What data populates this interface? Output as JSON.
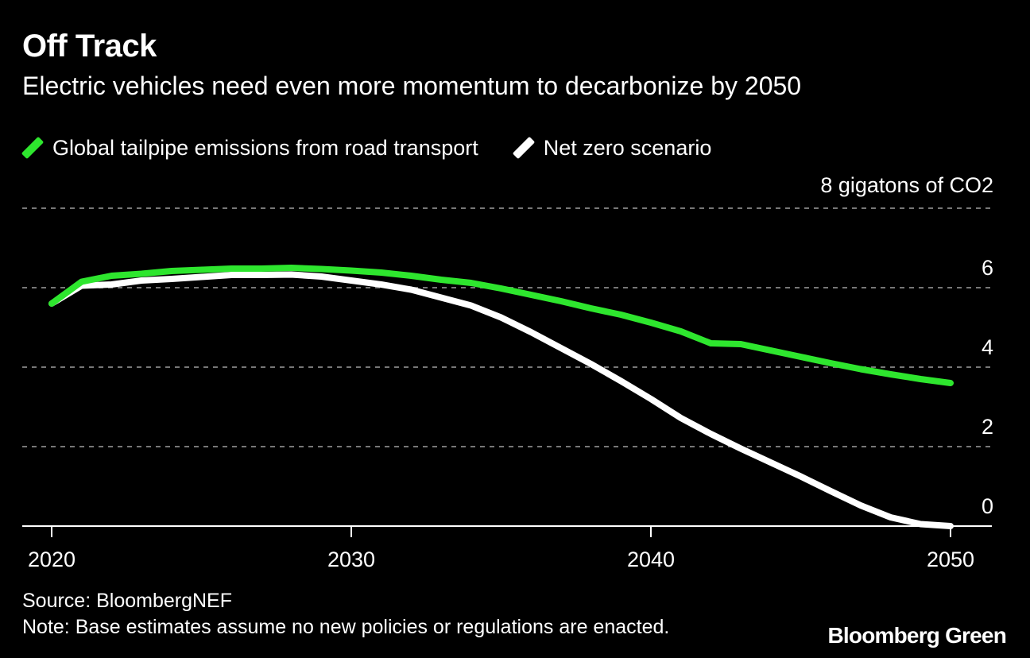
{
  "chart_data": {
    "type": "line",
    "title": "Off Track",
    "subtitle": "Electric vehicles need even more momentum to decarbonize by 2050",
    "y_unit_label": "8 gigatons of CO2",
    "xlim": [
      2019,
      2051
    ],
    "ylim": [
      0,
      8
    ],
    "x_ticks": [
      2020,
      2030,
      2040,
      2050
    ],
    "y_ticks": [
      {
        "value": 8,
        "label": ""
      },
      {
        "value": 6,
        "label": "6"
      },
      {
        "value": 4,
        "label": "4"
      },
      {
        "value": 2,
        "label": "2"
      },
      {
        "value": 0,
        "label": "0"
      }
    ],
    "grid": "horizontal dashed",
    "legend_position": "top-left",
    "series": [
      {
        "name": "Global tailpipe emissions from road transport",
        "color": "#2ee62e",
        "x": [
          2020,
          2021,
          2022,
          2023,
          2024,
          2025,
          2026,
          2027,
          2028,
          2029,
          2030,
          2031,
          2032,
          2033,
          2034,
          2035,
          2036,
          2037,
          2038,
          2039,
          2040,
          2041,
          2042,
          2043,
          2044,
          2045,
          2046,
          2047,
          2048,
          2049,
          2050
        ],
        "y": [
          5.6,
          6.15,
          6.3,
          6.35,
          6.42,
          6.45,
          6.48,
          6.48,
          6.5,
          6.47,
          6.43,
          6.38,
          6.3,
          6.2,
          6.12,
          5.98,
          5.82,
          5.66,
          5.48,
          5.32,
          5.12,
          4.9,
          4.6,
          4.58,
          4.42,
          4.26,
          4.1,
          3.95,
          3.82,
          3.7,
          3.6
        ]
      },
      {
        "name": "Net zero scenario",
        "color": "#ffffff",
        "x": [
          2020,
          2021,
          2022,
          2023,
          2024,
          2025,
          2026,
          2027,
          2028,
          2029,
          2030,
          2031,
          2032,
          2033,
          2034,
          2035,
          2036,
          2037,
          2038,
          2039,
          2040,
          2041,
          2042,
          2043,
          2044,
          2045,
          2046,
          2047,
          2048,
          2049,
          2050
        ],
        "y": [
          5.6,
          6.05,
          6.08,
          6.18,
          6.22,
          6.27,
          6.32,
          6.32,
          6.33,
          6.28,
          6.18,
          6.08,
          5.95,
          5.75,
          5.55,
          5.25,
          4.88,
          4.48,
          4.08,
          3.65,
          3.2,
          2.72,
          2.32,
          1.95,
          1.6,
          1.25,
          0.88,
          0.52,
          0.22,
          0.05,
          0.0
        ]
      }
    ],
    "legend": [
      {
        "label": "Global tailpipe emissions from road transport",
        "color": "#2ee62e"
      },
      {
        "label": "Net zero scenario",
        "color": "#ffffff"
      }
    ],
    "source": "Source: BloombergNEF",
    "note": "Note: Base estimates assume no new policies or regulations are enacted.",
    "brand": "Bloomberg Green"
  },
  "colors": {
    "background": "#000000",
    "text": "#ffffff",
    "grid": "#777777",
    "axis": "#ffffff"
  }
}
